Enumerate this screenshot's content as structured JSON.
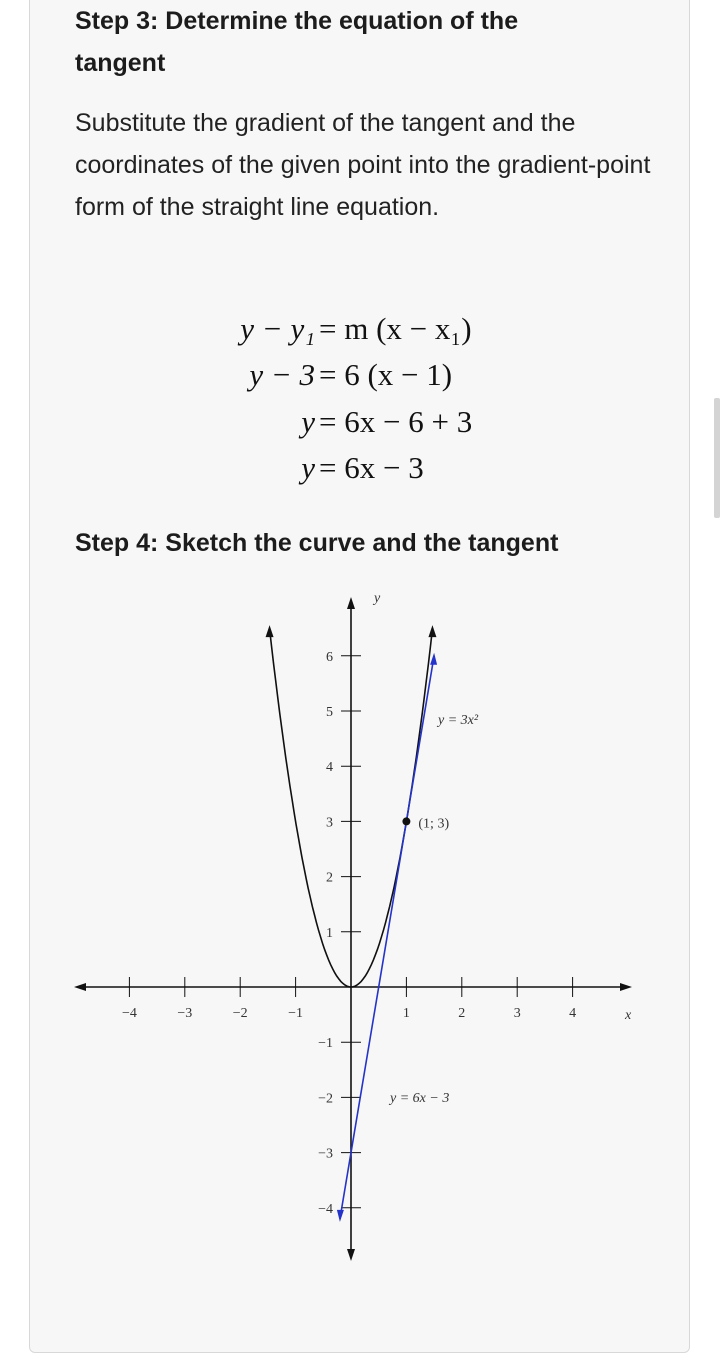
{
  "step3": {
    "heading_line1": "Step 3: Determine the equation of the",
    "heading_line2": "tangent",
    "paragraph": "Substitute the gradient of the tangent and the coordinates of the given point into the gradient-point form of the straight line equation."
  },
  "equations": [
    {
      "lhs": "y − y₁",
      "rhs": "= m (x − x₁)"
    },
    {
      "lhs": "y − 3",
      "rhs": "= 6 (x − 1)"
    },
    {
      "lhs": "y",
      "rhs": "= 6x − 6 + 3"
    },
    {
      "lhs": "y",
      "rhs": "= 6x − 3"
    }
  ],
  "step4": {
    "heading": "Step 4: Sketch the curve and the tangent"
  },
  "chart_data": {
    "type": "line",
    "x_axis_label": "x",
    "y_axis_label": "y",
    "xlim": [
      -4,
      4
    ],
    "ylim": [
      -4,
      6
    ],
    "x_ticks": [
      -4,
      -3,
      -2,
      -1,
      1,
      2,
      3,
      4
    ],
    "y_ticks": [
      6,
      5,
      4,
      3,
      2,
      1,
      -1,
      -2,
      -3,
      -4
    ],
    "x_tick_labels": [
      "−4",
      "−3",
      "−2",
      "−1",
      "1",
      "2",
      "3",
      "4"
    ],
    "y_tick_labels": [
      "6",
      "5",
      "4",
      "3",
      "2",
      "1",
      "−1",
      "−2",
      "−3",
      "−4"
    ],
    "series": [
      {
        "name": "y = 3x²",
        "kind": "parabola",
        "a": 3,
        "x_range": [
          -1.47,
          1.47
        ],
        "color": "#111111"
      },
      {
        "name": "y = 6x − 3",
        "kind": "linear",
        "m": 6,
        "c": -3,
        "x_range": [
          -0.2,
          1.5
        ],
        "color": "#2433c8"
      }
    ],
    "point": {
      "x": 1,
      "y": 3,
      "label": "(1; 3)"
    },
    "curve_label": "y = 3x²",
    "line_label": "y = 6x − 3",
    "grid": false
  }
}
